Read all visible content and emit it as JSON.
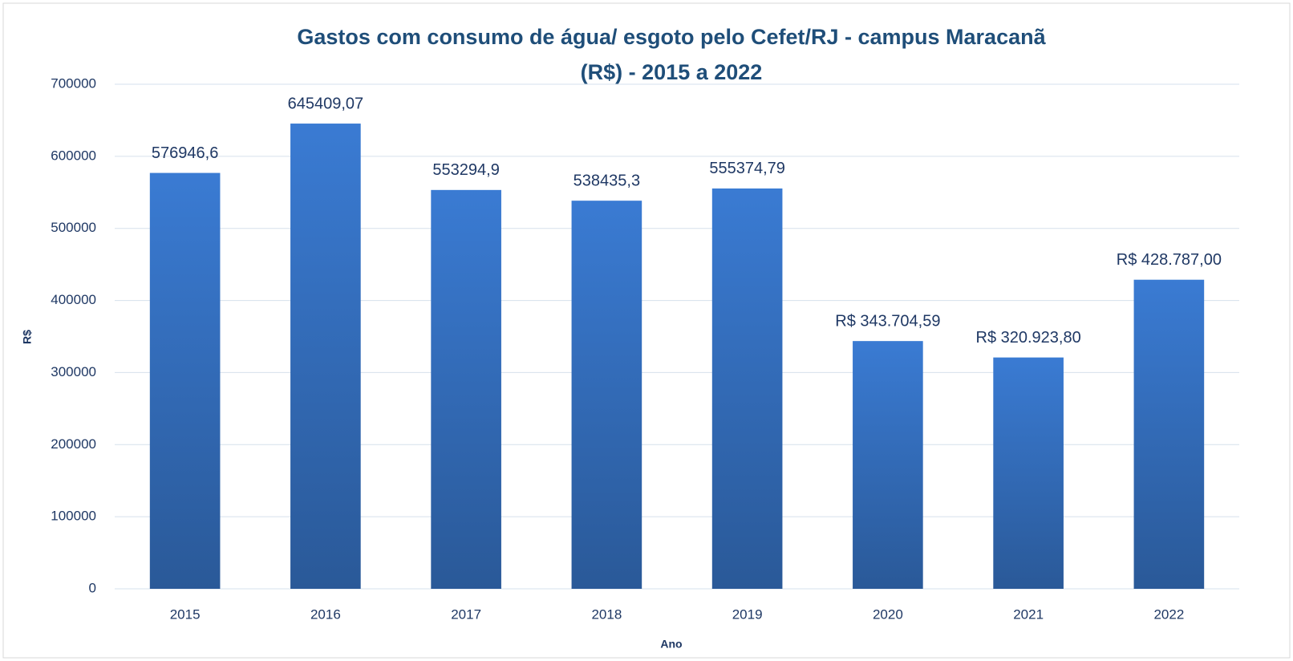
{
  "chart_data": {
    "type": "bar",
    "title": [
      "Gastos com consumo de água/ esgoto pelo Cefet/RJ - campus Maracanã",
      "(R$) - 2015 a 2022"
    ],
    "x_label": "Ano",
    "y_label": "R$",
    "categories": [
      "2015",
      "2016",
      "2017",
      "2018",
      "2019",
      "2020",
      "2021",
      "2022"
    ],
    "values": [
      576946.6,
      645409.07,
      553294.9,
      538435.3,
      555374.79,
      343704.59,
      320923.8,
      428787
    ],
    "value_labels": [
      "576946,6",
      "645409,07",
      "553294,9",
      "538435,3",
      "555374,79",
      "R$ 343.704,59",
      "R$ 320.923,80",
      "R$ 428.787,00"
    ],
    "color": "#3a7bd3",
    "ylim": [
      0,
      700000
    ],
    "yticks": [
      0,
      100000,
      200000,
      300000,
      400000,
      500000,
      600000,
      700000
    ],
    "grid": true
  }
}
